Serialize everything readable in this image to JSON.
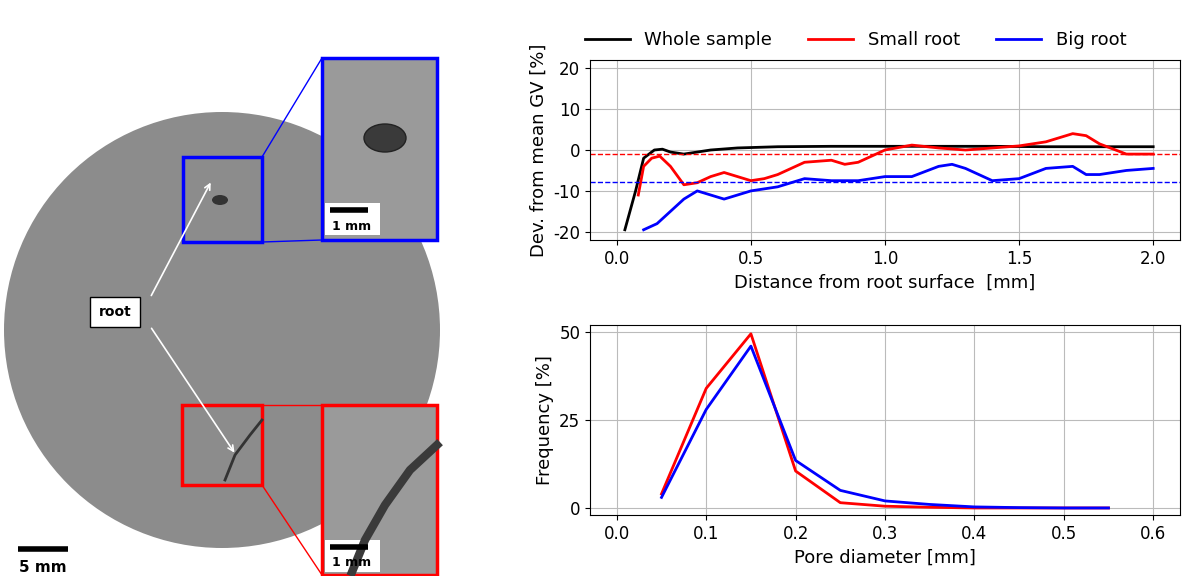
{
  "image": {
    "root_label": "root",
    "scale_bar": "5 mm",
    "inset_scale_bars": [
      "1 mm",
      "1 mm"
    ]
  },
  "chart_data": [
    {
      "type": "line",
      "xlabel": "Distance from root surface  [mm]",
      "ylabel": "Dev. from mean GV [%]",
      "xlim": [
        -0.1,
        2.1
      ],
      "xticks": [
        {
          "value": 0,
          "label": "0.0"
        },
        0.5,
        {
          "value": 1,
          "label": "1.0"
        },
        1.5,
        {
          "value": 2,
          "label": "2.0"
        }
      ],
      "ylim": [
        -22,
        22
      ],
      "yticks": [
        -20,
        -10,
        0,
        10,
        20
      ],
      "grid": true,
      "legend": "top",
      "reference_lines": [
        {
          "value": -1,
          "color": "#ff0000",
          "line_style": "dashed"
        },
        {
          "value": -7.8,
          "color": "#0000ff",
          "line_style": "dashed"
        }
      ],
      "series": [
        {
          "name": "Whole sample",
          "color": "#000000",
          "x": [
            0.03,
            0.07,
            0.1,
            0.14,
            0.17,
            0.2,
            0.25,
            0.3,
            0.35,
            0.45,
            0.6,
            0.8,
            1.0,
            1.2,
            1.4,
            1.6,
            1.8,
            2.0
          ],
          "values": [
            -19.5,
            -10,
            -2,
            0,
            0.2,
            -0.5,
            -1,
            -0.5,
            0,
            0.5,
            0.8,
            0.9,
            0.9,
            0.9,
            0.9,
            0.8,
            0.8,
            0.8
          ]
        },
        {
          "name": "Small root",
          "color": "#ff0000",
          "x": [
            0.08,
            0.1,
            0.13,
            0.16,
            0.2,
            0.25,
            0.3,
            0.35,
            0.4,
            0.45,
            0.5,
            0.55,
            0.6,
            0.7,
            0.8,
            0.85,
            0.9,
            1.0,
            1.1,
            1.2,
            1.3,
            1.4,
            1.5,
            1.6,
            1.7,
            1.75,
            1.8,
            1.9,
            2.0
          ],
          "values": [
            -11,
            -4,
            -2,
            -1.5,
            -4,
            -8.5,
            -8,
            -6.5,
            -5.5,
            -6.5,
            -7.5,
            -7,
            -6,
            -3,
            -2.5,
            -3.5,
            -3,
            0,
            1.2,
            0.5,
            0,
            0.5,
            1,
            2,
            4,
            3.5,
            1.5,
            -1,
            -1
          ]
        },
        {
          "name": "Big root",
          "color": "#0000ff",
          "x": [
            0.1,
            0.15,
            0.2,
            0.25,
            0.3,
            0.35,
            0.4,
            0.45,
            0.5,
            0.6,
            0.7,
            0.8,
            0.9,
            1.0,
            1.1,
            1.2,
            1.25,
            1.3,
            1.4,
            1.5,
            1.6,
            1.7,
            1.75,
            1.8,
            1.9,
            2.0
          ],
          "values": [
            -19.5,
            -18,
            -15,
            -12,
            -10,
            -11,
            -12,
            -11,
            -10,
            -9,
            -7,
            -7.5,
            -7.5,
            -6.5,
            -6.5,
            -4,
            -3.5,
            -4.5,
            -7.5,
            -7,
            -4.5,
            -4,
            -6,
            -6,
            -5,
            -4.5
          ]
        }
      ]
    },
    {
      "type": "line",
      "xlabel": "Pore diameter [mm]",
      "ylabel": "Frequency [%]",
      "xlim": [
        -0.03,
        0.63
      ],
      "xticks": [
        {
          "value": 0,
          "label": "0.0"
        },
        0.1,
        0.2,
        0.3,
        0.4,
        0.5,
        0.6
      ],
      "ylim": [
        -2,
        52
      ],
      "yticks": [
        0,
        25,
        50
      ],
      "grid": true,
      "series": [
        {
          "color": "#ff0000",
          "x": [
            0.05,
            0.1,
            0.15,
            0.2,
            0.25,
            0.3,
            0.35,
            0.4,
            0.45,
            0.5,
            0.55
          ],
          "values": [
            4,
            34,
            49.5,
            10.5,
            1.5,
            0.5,
            0.2,
            0,
            0,
            0,
            0
          ]
        },
        {
          "color": "#0000ff",
          "x": [
            0.05,
            0.1,
            0.15,
            0.2,
            0.25,
            0.3,
            0.35,
            0.4,
            0.45,
            0.5,
            0.55
          ],
          "values": [
            3,
            28,
            46,
            13.5,
            5,
            2,
            1,
            0.3,
            0.1,
            0,
            0
          ]
        }
      ]
    }
  ]
}
